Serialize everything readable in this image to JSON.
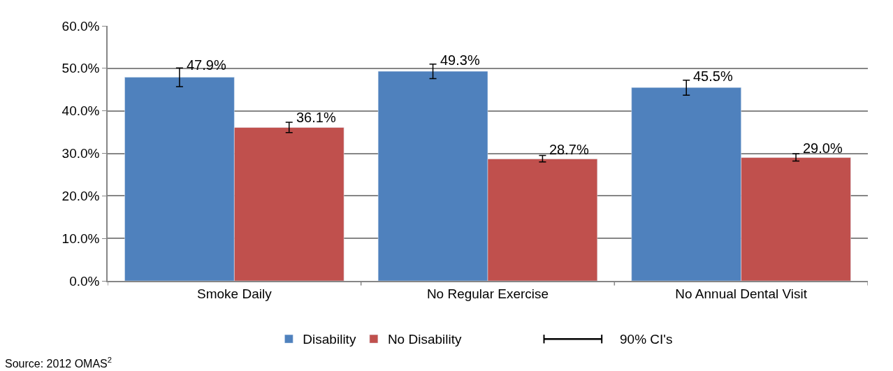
{
  "chart_data": {
    "type": "bar",
    "categories": [
      "Smoke Daily",
      "No Regular Exercise",
      "No Annual Dental Visit"
    ],
    "series": [
      {
        "name": "Disability",
        "color": "#4f81bd",
        "values": [
          47.9,
          49.3,
          45.5
        ],
        "value_labels": [
          "47.9%",
          "49.3%",
          "45.5%"
        ],
        "errors": [
          [
            45.7,
            50.1
          ],
          [
            47.6,
            51.0
          ],
          [
            43.7,
            47.2
          ]
        ]
      },
      {
        "name": "No Disability",
        "color": "#c0504d",
        "values": [
          36.1,
          28.7,
          29.0
        ],
        "value_labels": [
          "36.1%",
          "28.7%",
          "29.0%"
        ],
        "errors": [
          [
            34.9,
            37.3
          ],
          [
            28.0,
            29.5
          ],
          [
            28.2,
            29.9
          ]
        ]
      }
    ],
    "ylim": [
      0,
      60
    ],
    "yticks": [
      {
        "value": 0,
        "label": "0.0%"
      },
      {
        "value": 10,
        "label": "10.0%"
      },
      {
        "value": 20,
        "label": "20.0%"
      },
      {
        "value": 30,
        "label": "30.0%"
      },
      {
        "value": 40,
        "label": "40.0%"
      },
      {
        "value": 50,
        "label": "50.0%"
      },
      {
        "value": 60,
        "label": "60.0%"
      }
    ],
    "grid": "y",
    "legend": "bottom",
    "annotations": [
      "90% CI's",
      "Source: 2012 OMAS$^{2}$"
    ]
  }
}
